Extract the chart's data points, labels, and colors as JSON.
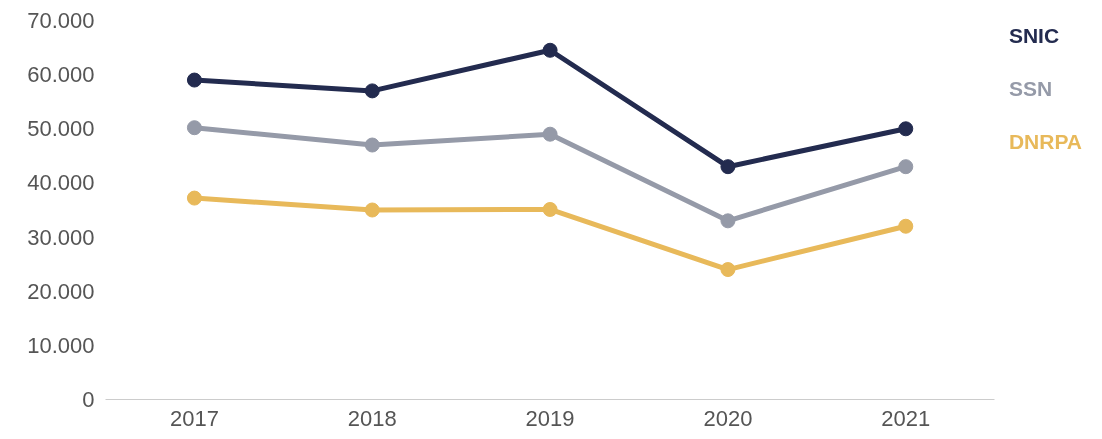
{
  "chart_data": {
    "type": "line",
    "categories": [
      "2017",
      "2018",
      "2019",
      "2020",
      "2021"
    ],
    "series": [
      {
        "name": "SNIC",
        "color": "#232b4f",
        "values": [
          59000,
          57000,
          64500,
          43000,
          50000
        ]
      },
      {
        "name": "SSN",
        "color": "#959aa8",
        "values": [
          50200,
          47000,
          49000,
          33000,
          43000
        ]
      },
      {
        "name": "DNRPA",
        "color": "#e8b95a",
        "values": [
          37200,
          35000,
          35100,
          24000,
          32000
        ]
      }
    ],
    "ylim": [
      0,
      70000
    ],
    "yticks": [
      {
        "value": 0,
        "label": "0"
      },
      {
        "value": 10000,
        "label": "10.000"
      },
      {
        "value": 20000,
        "label": "20.000"
      },
      {
        "value": 30000,
        "label": "30.000"
      },
      {
        "value": 40000,
        "label": "40.000"
      },
      {
        "value": 50000,
        "label": "50.000"
      },
      {
        "value": 60000,
        "label": "60.000"
      },
      {
        "value": 70000,
        "label": "70.000"
      }
    ],
    "grid": false,
    "marker": "circle",
    "line_style": "solid"
  }
}
